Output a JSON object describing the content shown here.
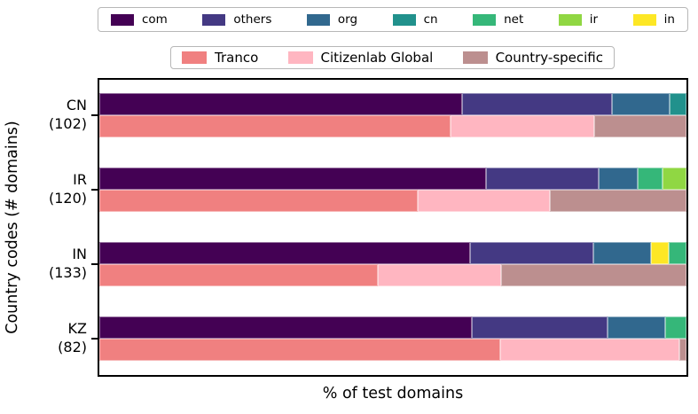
{
  "chart_data": {
    "type": "bar",
    "orientation": "horizontal",
    "stacked": true,
    "title": "",
    "xlabel": "% of test domains",
    "ylabel": "Country codes (# domains)",
    "xlim": [
      0,
      100
    ],
    "grid": false,
    "legend_position": "top, two rows, outside plot",
    "tld_legend": [
      "com",
      "others",
      "org",
      "cn",
      "net",
      "ir",
      "in"
    ],
    "source_legend": [
      "Tranco",
      "Citizenlab Global",
      "Country-specific"
    ],
    "colors": {
      "com": "#440154",
      "others": "#443983",
      "org": "#31688e",
      "cn": "#21918c",
      "net": "#35b779",
      "ir": "#90d743",
      "in": "#fde725",
      "Tranco": "#f08080",
      "Citizenlab Global": "#ffb6c1",
      "Country-specific": "#bc8f8f"
    },
    "groups": [
      {
        "code": "CN",
        "domain_count": 102,
        "tick_line1": "CN",
        "tick_line2": "(102)",
        "tld_segments": [
          {
            "name": "com",
            "pct": 61.8
          },
          {
            "name": "others",
            "pct": 25.5
          },
          {
            "name": "org",
            "pct": 9.8
          },
          {
            "name": "cn",
            "pct": 2.9
          }
        ],
        "source_segments": [
          {
            "name": "Tranco",
            "pct": 59.8
          },
          {
            "name": "Citizenlab Global",
            "pct": 24.5
          },
          {
            "name": "Country-specific",
            "pct": 15.7
          }
        ]
      },
      {
        "code": "IR",
        "domain_count": 120,
        "tick_line1": "IR",
        "tick_line2": "(120)",
        "tld_segments": [
          {
            "name": "com",
            "pct": 65.8
          },
          {
            "name": "others",
            "pct": 19.2
          },
          {
            "name": "org",
            "pct": 6.7
          },
          {
            "name": "net",
            "pct": 4.2
          },
          {
            "name": "ir",
            "pct": 4.1
          }
        ],
        "source_segments": [
          {
            "name": "Tranco",
            "pct": 54.2
          },
          {
            "name": "Citizenlab Global",
            "pct": 22.5
          },
          {
            "name": "Country-specific",
            "pct": 23.3
          }
        ]
      },
      {
        "code": "IN",
        "domain_count": 133,
        "tick_line1": "IN",
        "tick_line2": "(133)",
        "tld_segments": [
          {
            "name": "com",
            "pct": 63.2
          },
          {
            "name": "others",
            "pct": 21.0
          },
          {
            "name": "org",
            "pct": 9.8
          },
          {
            "name": "in",
            "pct": 3.0
          },
          {
            "name": "net",
            "pct": 3.0
          }
        ],
        "source_segments": [
          {
            "name": "Tranco",
            "pct": 47.4
          },
          {
            "name": "Citizenlab Global",
            "pct": 21.1
          },
          {
            "name": "Country-specific",
            "pct": 31.5
          }
        ]
      },
      {
        "code": "KZ",
        "domain_count": 82,
        "tick_line1": "KZ",
        "tick_line2": "(82)",
        "tld_segments": [
          {
            "name": "com",
            "pct": 63.4
          },
          {
            "name": "others",
            "pct": 23.2
          },
          {
            "name": "org",
            "pct": 9.8
          },
          {
            "name": "net",
            "pct": 3.6
          }
        ],
        "source_segments": [
          {
            "name": "Tranco",
            "pct": 68.3
          },
          {
            "name": "Citizenlab Global",
            "pct": 30.5
          },
          {
            "name": "Country-specific",
            "pct": 1.2
          }
        ]
      }
    ]
  }
}
